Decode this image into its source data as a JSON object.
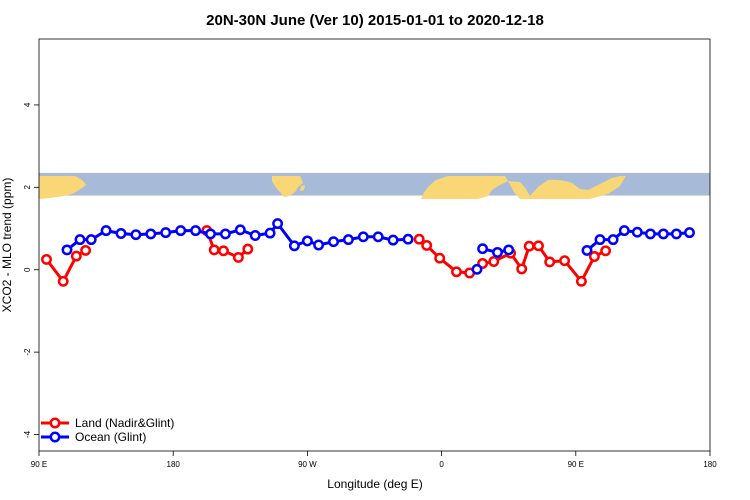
{
  "chart_data": {
    "type": "line",
    "title": "20N-30N June (Ver 10)   2015-01-01 to 2020-12-18",
    "xlabel": "Longitude (deg E)",
    "ylabel": "XCO2 - MLO trend (ppm)",
    "xlim": [
      -180,
      180
    ],
    "ylim": [
      -4.4,
      5.6
    ],
    "x_ticks": [
      {
        "value": -180,
        "label": "90 E"
      },
      {
        "value": -108,
        "label": "180"
      },
      {
        "value": -36,
        "label": "90 W"
      },
      {
        "value": 36,
        "label": "0"
      },
      {
        "value": 108,
        "label": "90 E"
      },
      {
        "value": 180,
        "label": "180"
      }
    ],
    "y_ticks": [
      {
        "value": -4,
        "label": "-4"
      },
      {
        "value": -2,
        "label": "-2"
      },
      {
        "value": 0,
        "label": "0"
      },
      {
        "value": 2,
        "label": "2"
      },
      {
        "value": 4,
        "label": "4"
      }
    ],
    "map_strip": {
      "ymin": 1.8,
      "ymax": 2.35,
      "ocean_color": "#a7bbd8",
      "land_color": "#f9d777"
    },
    "legend": {
      "position": "bottom-left"
    },
    "series": [
      {
        "name": "Land (Nadir&Glint)",
        "color": "#ff0000",
        "segments": [
          [
            [
              -176,
              0.25
            ],
            [
              -167,
              -0.28
            ],
            [
              -160,
              0.33
            ],
            [
              -155,
              0.47
            ]
          ],
          [
            [
              -90,
              0.95
            ],
            [
              -86,
              0.48
            ],
            [
              -81,
              0.46
            ],
            [
              -73,
              0.3
            ],
            [
              -68,
              0.5
            ]
          ],
          [
            [
              24,
              0.74
            ],
            [
              28,
              0.59
            ],
            [
              35,
              0.28
            ],
            [
              44,
              -0.05
            ],
            [
              51,
              -0.08
            ],
            [
              58,
              0.15
            ],
            [
              64,
              0.2
            ],
            [
              73,
              0.4
            ],
            [
              79,
              0.02
            ],
            [
              83,
              0.57
            ],
            [
              88,
              0.58
            ],
            [
              94,
              0.19
            ],
            [
              102,
              0.22
            ],
            [
              111,
              -0.28
            ],
            [
              118,
              0.32
            ],
            [
              124,
              0.46
            ]
          ]
        ]
      },
      {
        "name": "Ocean (Glint)",
        "color": "#0000ff",
        "segments": [
          [
            [
              -165,
              0.48
            ],
            [
              -158,
              0.73
            ],
            [
              -152,
              0.73
            ],
            [
              -144,
              0.95
            ],
            [
              -136,
              0.88
            ],
            [
              -128,
              0.85
            ],
            [
              -120,
              0.87
            ],
            [
              -112,
              0.9
            ],
            [
              -104,
              0.95
            ],
            [
              -96,
              0.95
            ],
            [
              -88,
              0.87
            ],
            [
              -80,
              0.87
            ],
            [
              -72,
              0.97
            ],
            [
              -64,
              0.83
            ],
            [
              -56,
              0.89
            ],
            [
              -52,
              1.12
            ],
            [
              -43,
              0.58
            ],
            [
              -36,
              0.7
            ],
            [
              -30,
              0.6
            ],
            [
              -22,
              0.68
            ],
            [
              -14,
              0.73
            ],
            [
              -6,
              0.8
            ],
            [
              2,
              0.8
            ],
            [
              10,
              0.72
            ],
            [
              18,
              0.74
            ]
          ],
          [
            [
              58,
              0.51
            ],
            [
              66,
              0.42
            ],
            [
              72,
              0.48
            ]
          ],
          [
            [
              55,
              0.01
            ]
          ],
          [
            [
              114,
              0.47
            ],
            [
              121,
              0.73
            ],
            [
              128,
              0.73
            ],
            [
              134,
              0.95
            ],
            [
              141,
              0.91
            ],
            [
              148,
              0.87
            ],
            [
              155,
              0.87
            ],
            [
              162,
              0.87
            ],
            [
              169,
              0.9
            ]
          ]
        ]
      }
    ]
  }
}
